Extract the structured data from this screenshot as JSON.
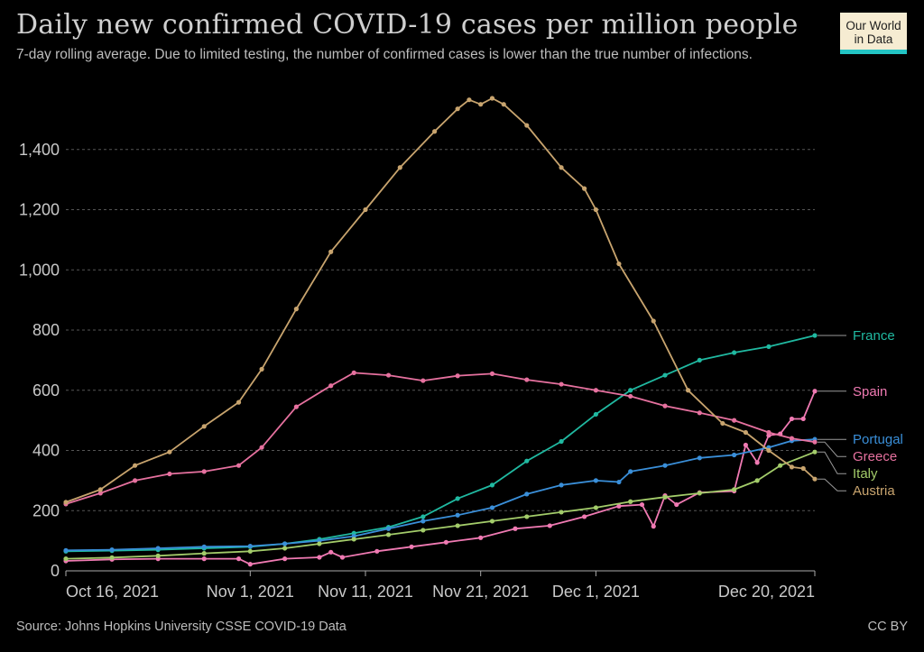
{
  "header": {
    "title": "Daily new confirmed COVID-19 cases per million people",
    "subtitle": "7-day rolling average. Due to limited testing, the number of confirmed cases is lower than the true number of infections.",
    "logo_line1": "Our World",
    "logo_line2": "in Data"
  },
  "footer": {
    "source": "Source: Johns Hopkins University CSSE COVID-19 Data",
    "license": "CC BY"
  },
  "chart_data": {
    "type": "line",
    "title": "Daily new confirmed COVID-19 cases per million people",
    "xlabel": "",
    "ylabel": "",
    "ylim": [
      0,
      1600
    ],
    "yticks": [
      0,
      200,
      400,
      600,
      800,
      1000,
      1200,
      1400
    ],
    "ytick_labels": [
      "0",
      "200",
      "400",
      "600",
      "800",
      "1,000",
      "1,200",
      "1,400"
    ],
    "x_start": "2021-10-16",
    "x_end": "2021-12-20",
    "xticks": [
      "2021-10-16",
      "2021-11-01",
      "2021-11-11",
      "2021-11-21",
      "2021-12-01",
      "2021-12-20"
    ],
    "xtick_labels": [
      "Oct 16, 2021",
      "Nov 1, 2021",
      "Nov 11, 2021",
      "Nov 21, 2021",
      "Dec 1, 2021",
      "Dec 20, 2021"
    ],
    "grid": true,
    "legend": "end-labels-right",
    "series": [
      {
        "name": "France",
        "color": "#20b9a1",
        "points": [
          [
            "2021-10-16",
            65
          ],
          [
            "2021-10-20",
            67
          ],
          [
            "2021-10-24",
            70
          ],
          [
            "2021-10-28",
            75
          ],
          [
            "2021-11-01",
            80
          ],
          [
            "2021-11-04",
            90
          ],
          [
            "2021-11-07",
            105
          ],
          [
            "2021-11-10",
            125
          ],
          [
            "2021-11-13",
            145
          ],
          [
            "2021-11-16",
            180
          ],
          [
            "2021-11-19",
            240
          ],
          [
            "2021-11-22",
            285
          ],
          [
            "2021-11-25",
            365
          ],
          [
            "2021-11-28",
            430
          ],
          [
            "2021-12-01",
            520
          ],
          [
            "2021-12-04",
            600
          ],
          [
            "2021-12-07",
            650
          ],
          [
            "2021-12-10",
            700
          ],
          [
            "2021-12-13",
            725
          ],
          [
            "2021-12-16",
            745
          ],
          [
            "2021-12-20",
            782
          ]
        ]
      },
      {
        "name": "Spain",
        "color": "#f07ab3",
        "points": [
          [
            "2021-10-16",
            33
          ],
          [
            "2021-10-20",
            38
          ],
          [
            "2021-10-24",
            40
          ],
          [
            "2021-10-28",
            40
          ],
          [
            "2021-10-31",
            40
          ],
          [
            "2021-11-01",
            22
          ],
          [
            "2021-11-04",
            40
          ],
          [
            "2021-11-07",
            45
          ],
          [
            "2021-11-08",
            62
          ],
          [
            "2021-11-09",
            45
          ],
          [
            "2021-11-12",
            65
          ],
          [
            "2021-11-15",
            80
          ],
          [
            "2021-11-18",
            95
          ],
          [
            "2021-11-21",
            110
          ],
          [
            "2021-11-24",
            140
          ],
          [
            "2021-11-27",
            150
          ],
          [
            "2021-11-30",
            180
          ],
          [
            "2021-12-03",
            215
          ],
          [
            "2021-12-05",
            220
          ],
          [
            "2021-12-06",
            148
          ],
          [
            "2021-12-07",
            250
          ],
          [
            "2021-12-08",
            220
          ],
          [
            "2021-12-10",
            260
          ],
          [
            "2021-12-13",
            265
          ],
          [
            "2021-12-14",
            418
          ],
          [
            "2021-12-15",
            360
          ],
          [
            "2021-12-16",
            450
          ],
          [
            "2021-12-17",
            455
          ],
          [
            "2021-12-18",
            505
          ],
          [
            "2021-12-19",
            505
          ],
          [
            "2021-12-20",
            597
          ]
        ]
      },
      {
        "name": "Portugal",
        "color": "#3a8fd9",
        "points": [
          [
            "2021-10-16",
            68
          ],
          [
            "2021-10-20",
            70
          ],
          [
            "2021-10-24",
            75
          ],
          [
            "2021-10-28",
            80
          ],
          [
            "2021-11-01",
            82
          ],
          [
            "2021-11-04",
            90
          ],
          [
            "2021-11-07",
            100
          ],
          [
            "2021-11-10",
            115
          ],
          [
            "2021-11-13",
            140
          ],
          [
            "2021-11-16",
            165
          ],
          [
            "2021-11-19",
            185
          ],
          [
            "2021-11-22",
            210
          ],
          [
            "2021-11-25",
            255
          ],
          [
            "2021-11-28",
            285
          ],
          [
            "2021-12-01",
            300
          ],
          [
            "2021-12-03",
            295
          ],
          [
            "2021-12-04",
            330
          ],
          [
            "2021-12-07",
            350
          ],
          [
            "2021-12-10",
            375
          ],
          [
            "2021-12-13",
            385
          ],
          [
            "2021-12-16",
            410
          ],
          [
            "2021-12-18",
            432
          ],
          [
            "2021-12-20",
            437
          ]
        ]
      },
      {
        "name": "Greece",
        "color": "#e6719f",
        "points": [
          [
            "2021-10-16",
            222
          ],
          [
            "2021-10-19",
            258
          ],
          [
            "2021-10-22",
            300
          ],
          [
            "2021-10-25",
            322
          ],
          [
            "2021-10-28",
            330
          ],
          [
            "2021-10-31",
            350
          ],
          [
            "2021-11-02",
            410
          ],
          [
            "2021-11-05",
            545
          ],
          [
            "2021-11-08",
            615
          ],
          [
            "2021-11-10",
            658
          ],
          [
            "2021-11-13",
            650
          ],
          [
            "2021-11-16",
            632
          ],
          [
            "2021-11-19",
            648
          ],
          [
            "2021-11-22",
            655
          ],
          [
            "2021-11-25",
            635
          ],
          [
            "2021-11-28",
            620
          ],
          [
            "2021-12-01",
            600
          ],
          [
            "2021-12-04",
            580
          ],
          [
            "2021-12-07",
            548
          ],
          [
            "2021-12-10",
            525
          ],
          [
            "2021-12-13",
            500
          ],
          [
            "2021-12-16",
            460
          ],
          [
            "2021-12-18",
            440
          ],
          [
            "2021-12-20",
            428
          ]
        ]
      },
      {
        "name": "Italy",
        "color": "#a3cc6a",
        "points": [
          [
            "2021-10-16",
            40
          ],
          [
            "2021-10-20",
            44
          ],
          [
            "2021-10-24",
            50
          ],
          [
            "2021-10-28",
            58
          ],
          [
            "2021-11-01",
            65
          ],
          [
            "2021-11-04",
            75
          ],
          [
            "2021-11-07",
            90
          ],
          [
            "2021-11-10",
            105
          ],
          [
            "2021-11-13",
            120
          ],
          [
            "2021-11-16",
            135
          ],
          [
            "2021-11-19",
            150
          ],
          [
            "2021-11-22",
            165
          ],
          [
            "2021-11-25",
            180
          ],
          [
            "2021-11-28",
            195
          ],
          [
            "2021-12-01",
            210
          ],
          [
            "2021-12-04",
            230
          ],
          [
            "2021-12-07",
            245
          ],
          [
            "2021-12-10",
            258
          ],
          [
            "2021-12-13",
            270
          ],
          [
            "2021-12-15",
            300
          ],
          [
            "2021-12-17",
            350
          ],
          [
            "2021-12-20",
            395
          ]
        ]
      },
      {
        "name": "Austria",
        "color": "#c8a46e",
        "points": [
          [
            "2021-10-16",
            228
          ],
          [
            "2021-10-19",
            270
          ],
          [
            "2021-10-22",
            350
          ],
          [
            "2021-10-25",
            395
          ],
          [
            "2021-10-28",
            480
          ],
          [
            "2021-10-31",
            560
          ],
          [
            "2021-11-02",
            670
          ],
          [
            "2021-11-05",
            870
          ],
          [
            "2021-11-08",
            1060
          ],
          [
            "2021-11-11",
            1200
          ],
          [
            "2021-11-14",
            1340
          ],
          [
            "2021-11-17",
            1460
          ],
          [
            "2021-11-19",
            1535
          ],
          [
            "2021-11-20",
            1565
          ],
          [
            "2021-11-21",
            1550
          ],
          [
            "2021-11-22",
            1570
          ],
          [
            "2021-11-23",
            1550
          ],
          [
            "2021-11-25",
            1480
          ],
          [
            "2021-11-28",
            1340
          ],
          [
            "2021-11-30",
            1270
          ],
          [
            "2021-12-01",
            1200
          ],
          [
            "2021-12-03",
            1020
          ],
          [
            "2021-12-06",
            830
          ],
          [
            "2021-12-09",
            600
          ],
          [
            "2021-12-12",
            490
          ],
          [
            "2021-12-14",
            460
          ],
          [
            "2021-12-16",
            400
          ],
          [
            "2021-12-18",
            345
          ],
          [
            "2021-12-19",
            340
          ],
          [
            "2021-12-20",
            305
          ]
        ]
      }
    ],
    "end_labels": [
      {
        "series": "France"
      },
      {
        "series": "Spain"
      },
      {
        "series": "Portugal"
      },
      {
        "series": "Greece"
      },
      {
        "series": "Italy"
      },
      {
        "series": "Austria"
      }
    ]
  }
}
